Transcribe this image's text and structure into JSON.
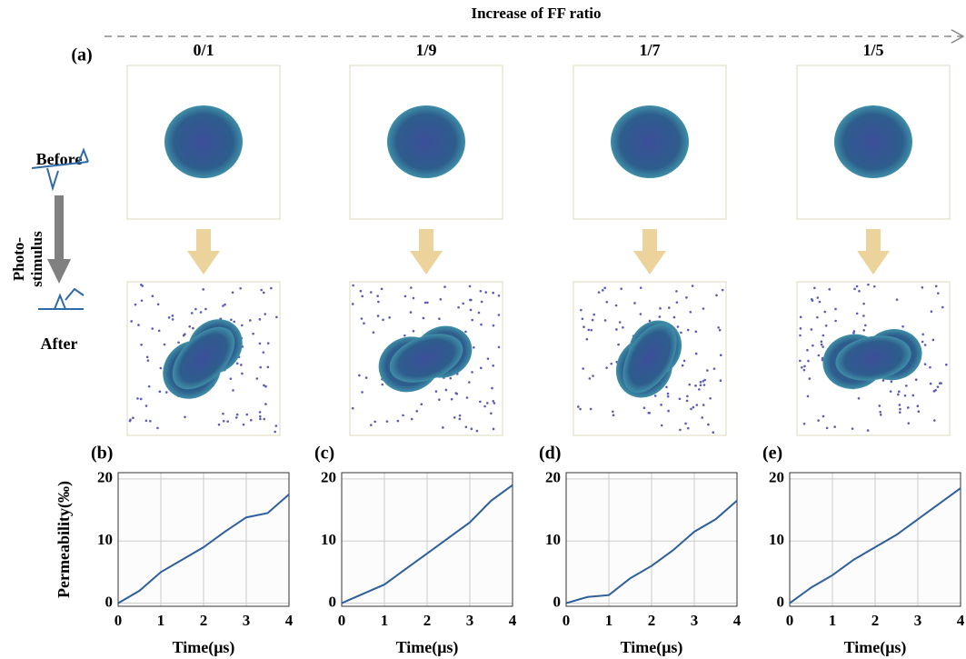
{
  "figure": {
    "header": "Increase of FF ratio",
    "panel": "(a)",
    "columns": [
      "0/1",
      "1/9",
      "1/7",
      "1/5"
    ],
    "before": "Before",
    "after": "After",
    "stimulus": [
      "Photo-",
      "stimulus"
    ]
  },
  "chart_data": [
    {
      "type": "line",
      "title": "(b)",
      "xlabel": "Time(μs)",
      "ylabel": "Permeability(‰)",
      "x": [
        0,
        0.5,
        1,
        1.5,
        2,
        2.5,
        3,
        3.5,
        4
      ],
      "values": [
        0,
        2,
        5,
        7,
        9,
        11.5,
        13.8,
        14.5,
        17.5
      ],
      "color": "#2e5f9a",
      "xlim": [
        0,
        4
      ],
      "ylim": [
        -0.5,
        21
      ],
      "xticks": [
        0,
        1,
        2,
        3,
        4
      ],
      "yticks": [
        0,
        10,
        20
      ],
      "grid": true
    },
    {
      "type": "line",
      "title": "(c)",
      "xlabel": "Time(μs)",
      "x": [
        0,
        0.5,
        1,
        1.5,
        2,
        2.5,
        3,
        3.5,
        4
      ],
      "values": [
        0,
        1.5,
        3,
        5.5,
        8,
        10.5,
        13,
        16.5,
        19
      ],
      "color": "#2e5f9a",
      "xlim": [
        0,
        4
      ],
      "ylim": [
        -0.5,
        21
      ],
      "xticks": [
        0,
        1,
        2,
        3,
        4
      ],
      "yticks": [
        0,
        10,
        20
      ],
      "grid": true
    },
    {
      "type": "line",
      "title": "(d)",
      "xlabel": "Time(μs)",
      "x": [
        0,
        0.5,
        1,
        1.5,
        2,
        2.5,
        3,
        3.5,
        4
      ],
      "values": [
        0,
        1,
        1.3,
        4,
        6,
        8.5,
        11.5,
        13.5,
        16.5
      ],
      "color": "#2e5f9a",
      "xlim": [
        0,
        4
      ],
      "ylim": [
        -0.5,
        21
      ],
      "xticks": [
        0,
        1,
        2,
        3,
        4
      ],
      "yticks": [
        0,
        10,
        20
      ],
      "grid": true
    },
    {
      "type": "line",
      "title": "(e)",
      "xlabel": "Time(μs)",
      "x": [
        0,
        0.5,
        1,
        1.5,
        2,
        2.5,
        3,
        3.5,
        4
      ],
      "values": [
        0,
        2.5,
        4.5,
        7,
        9,
        11,
        13.5,
        16,
        18.5
      ],
      "color": "#2e5f9a",
      "xlim": [
        0,
        4
      ],
      "ylim": [
        -0.5,
        21
      ],
      "xticks": [
        0,
        1,
        2,
        3,
        4
      ],
      "yticks": [
        0,
        10,
        20
      ],
      "grid": true
    }
  ]
}
